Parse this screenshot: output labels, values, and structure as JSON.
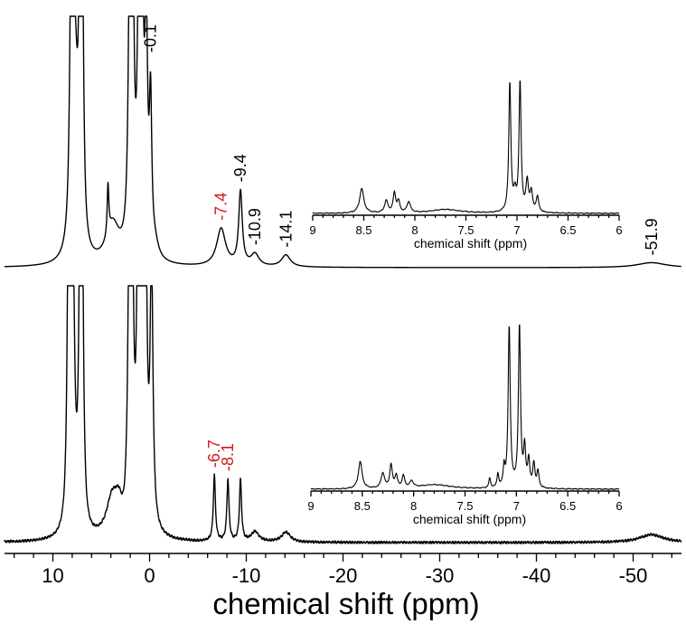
{
  "chart_data": {
    "type": "line",
    "xlabel": "chemical shift (ppm)",
    "xlim": [
      15,
      -55
    ],
    "x_ticks": [
      "10",
      "0",
      "-10",
      "-20",
      "-30",
      "-40",
      "-50"
    ],
    "x_tick_values": [
      10,
      0,
      -10,
      -20,
      -30,
      -40,
      -50
    ],
    "x_minor_step": 2,
    "colors": {
      "black": "#000000",
      "red": "#d7191c"
    },
    "series": [
      {
        "id": "upper",
        "peaks": [
          {
            "x": 8.1,
            "h": 1.3,
            "w": 0.17
          },
          {
            "x": 7.9,
            "h": 1.3,
            "w": 0.17
          },
          {
            "x": 7.6,
            "h": 0.5,
            "w": 0.3
          },
          {
            "x": 7.2,
            "h": 1.3,
            "w": 0.15
          },
          {
            "x": 6.95,
            "h": 1.3,
            "w": 0.15
          },
          {
            "x": 3.8,
            "h": 0.19,
            "w": 0.8
          },
          {
            "x": 4.3,
            "h": 0.25,
            "w": 0.1
          },
          {
            "x": 2.05,
            "h": 1.4,
            "w": 0.17
          },
          {
            "x": 1.75,
            "h": 1.4,
            "w": 0.17
          },
          {
            "x": 1.1,
            "h": 1.4,
            "w": 0.18
          },
          {
            "x": 0.75,
            "h": 1.1,
            "w": 0.17
          },
          {
            "x": 0.35,
            "h": 1.1,
            "w": 0.17
          },
          {
            "x": -0.1,
            "h": 0.72,
            "w": 0.15
          },
          {
            "x": -0.6,
            "h": 0.05,
            "w": 0.4
          },
          {
            "x": -7.4,
            "h": 0.19,
            "w": 0.55
          },
          {
            "x": -9.4,
            "h": 0.37,
            "w": 0.22
          },
          {
            "x": -10.9,
            "h": 0.06,
            "w": 0.5
          },
          {
            "x": -14.1,
            "h": 0.06,
            "w": 0.55
          },
          {
            "x": -51.9,
            "h": 0.025,
            "w": 1.8
          }
        ],
        "labels": [
          {
            "text": "-0.1",
            "x": -0.1,
            "color": "black"
          },
          {
            "text": "-7.4",
            "x": -7.4,
            "color": "red"
          },
          {
            "text": "-9.4",
            "x": -9.4,
            "color": "black"
          },
          {
            "text": "-10.9",
            "x": -10.9,
            "color": "black"
          },
          {
            "text": "-14.1",
            "x": -14.1,
            "color": "black"
          },
          {
            "text": "-51.9",
            "x": -51.9,
            "color": "black"
          }
        ]
      },
      {
        "id": "lower",
        "peaks": [
          {
            "x": 8.4,
            "h": 1.3,
            "w": 0.15
          },
          {
            "x": 8.15,
            "h": 1.3,
            "w": 0.15
          },
          {
            "x": 7.9,
            "h": 1.0,
            "w": 0.2
          },
          {
            "x": 7.2,
            "h": 1.3,
            "w": 0.15
          },
          {
            "x": 6.95,
            "h": 1.3,
            "w": 0.15
          },
          {
            "x": 3.9,
            "h": 0.18,
            "w": 0.7
          },
          {
            "x": 3.2,
            "h": 0.12,
            "w": 0.5
          },
          {
            "x": 2.1,
            "h": 1.35,
            "w": 0.17
          },
          {
            "x": 1.8,
            "h": 1.35,
            "w": 0.17
          },
          {
            "x": 1.2,
            "h": 1.35,
            "w": 0.17
          },
          {
            "x": 0.8,
            "h": 1.35,
            "w": 0.17
          },
          {
            "x": 0.4,
            "h": 1.35,
            "w": 0.17
          },
          {
            "x": -0.2,
            "h": 1.35,
            "w": 0.17
          },
          {
            "x": -6.7,
            "h": 0.33,
            "w": 0.13
          },
          {
            "x": -8.1,
            "h": 0.31,
            "w": 0.13
          },
          {
            "x": -9.4,
            "h": 0.31,
            "w": 0.13
          },
          {
            "x": -10.9,
            "h": 0.05,
            "w": 0.5
          },
          {
            "x": -14.1,
            "h": 0.05,
            "w": 0.55
          },
          {
            "x": -51.9,
            "h": 0.04,
            "w": 1.5
          }
        ],
        "dip": {
          "x": 2.7,
          "h": 0.035,
          "w": 0.35
        },
        "labels": [
          {
            "text": "-6.7",
            "x": -6.7,
            "color": "red"
          },
          {
            "text": "-8.1",
            "x": -8.1,
            "color": "red"
          }
        ]
      }
    ],
    "insets": [
      {
        "id": "upper-inset",
        "xlabel": "chemical shift (ppm)",
        "xlim": [
          9,
          6
        ],
        "x_ticks": [
          "9",
          "8.5",
          "8",
          "7.5",
          "7",
          "6.5",
          "6"
        ],
        "x_tick_values": [
          9,
          8.5,
          8,
          7.5,
          7,
          6.5,
          6
        ],
        "peaks": [
          {
            "x": 8.52,
            "h": 0.45,
            "w": 0.025
          },
          {
            "x": 8.28,
            "h": 0.22,
            "w": 0.02
          },
          {
            "x": 8.2,
            "h": 0.36,
            "w": 0.015
          },
          {
            "x": 8.16,
            "h": 0.2,
            "w": 0.015
          },
          {
            "x": 8.06,
            "h": 0.2,
            "w": 0.02
          },
          {
            "x": 7.7,
            "h": 0.07,
            "w": 0.18
          },
          {
            "x": 7.07,
            "h": 2.4,
            "w": 0.012
          },
          {
            "x": 7.02,
            "h": 0.3,
            "w": 0.015
          },
          {
            "x": 6.97,
            "h": 2.4,
            "w": 0.012
          },
          {
            "x": 6.9,
            "h": 0.55,
            "w": 0.015
          },
          {
            "x": 6.86,
            "h": 0.35,
            "w": 0.015
          },
          {
            "x": 6.8,
            "h": 0.28,
            "w": 0.015
          }
        ]
      },
      {
        "id": "lower-inset",
        "xlabel": "chemical shift (ppm)",
        "xlim": [
          9,
          6
        ],
        "x_ticks": [
          "9",
          "8.5",
          "8",
          "7.5",
          "7",
          "6.5",
          "6"
        ],
        "x_tick_values": [
          9,
          8.5,
          8,
          7.5,
          7,
          6.5,
          6
        ],
        "peaks": [
          {
            "x": 8.52,
            "h": 0.5,
            "w": 0.022
          },
          {
            "x": 8.3,
            "h": 0.28,
            "w": 0.02
          },
          {
            "x": 8.22,
            "h": 0.42,
            "w": 0.015
          },
          {
            "x": 8.17,
            "h": 0.22,
            "w": 0.015
          },
          {
            "x": 8.1,
            "h": 0.22,
            "w": 0.015
          },
          {
            "x": 8.02,
            "h": 0.12,
            "w": 0.02
          },
          {
            "x": 7.8,
            "h": 0.08,
            "w": 0.2
          },
          {
            "x": 7.26,
            "h": 0.18,
            "w": 0.01
          },
          {
            "x": 7.18,
            "h": 0.25,
            "w": 0.01
          },
          {
            "x": 7.12,
            "h": 0.35,
            "w": 0.01
          },
          {
            "x": 7.07,
            "h": 3.0,
            "w": 0.012
          },
          {
            "x": 6.97,
            "h": 3.0,
            "w": 0.012
          },
          {
            "x": 6.92,
            "h": 0.7,
            "w": 0.012
          },
          {
            "x": 6.88,
            "h": 0.5,
            "w": 0.012
          },
          {
            "x": 6.83,
            "h": 0.45,
            "w": 0.012
          },
          {
            "x": 6.79,
            "h": 0.3,
            "w": 0.012
          }
        ]
      }
    ]
  }
}
